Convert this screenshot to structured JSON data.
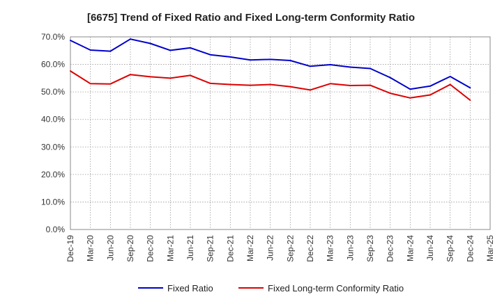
{
  "chart_data": {
    "type": "line",
    "title": "[6675]  Trend of Fixed Ratio and Fixed Long-term Conformity Ratio",
    "xlabel": "",
    "ylabel": "",
    "ylim": [
      0,
      70
    ],
    "yticks": [
      "0.0%",
      "10.0%",
      "20.0%",
      "30.0%",
      "40.0%",
      "50.0%",
      "60.0%",
      "70.0%"
    ],
    "categories": [
      "Dec-19",
      "Mar-20",
      "Jun-20",
      "Sep-20",
      "Dec-20",
      "Mar-21",
      "Jun-21",
      "Sep-21",
      "Dec-21",
      "Mar-22",
      "Jun-22",
      "Sep-22",
      "Dec-22",
      "Mar-23",
      "Jun-23",
      "Sep-23",
      "Dec-23",
      "Mar-24",
      "Jun-24",
      "Sep-24",
      "Dec-24",
      "Mar-25"
    ],
    "grid": true,
    "legend_position": "bottom",
    "series": [
      {
        "name": "Fixed Ratio",
        "color": "#0000cc",
        "values": [
          68.7,
          65.2,
          64.8,
          69.2,
          67.6,
          65.1,
          66.0,
          63.5,
          62.7,
          61.6,
          61.8,
          61.4,
          59.3,
          59.9,
          59.0,
          58.5,
          55.2,
          51.0,
          52.1,
          55.6,
          51.5,
          null
        ]
      },
      {
        "name": "Fixed Long-term Conformity Ratio",
        "color": "#dd0000",
        "values": [
          57.6,
          53.0,
          52.9,
          56.3,
          55.5,
          55.0,
          56.0,
          53.1,
          52.7,
          52.4,
          52.7,
          51.9,
          50.7,
          53.0,
          52.3,
          52.4,
          49.5,
          47.8,
          48.9,
          52.7,
          47.0,
          null
        ]
      }
    ]
  }
}
